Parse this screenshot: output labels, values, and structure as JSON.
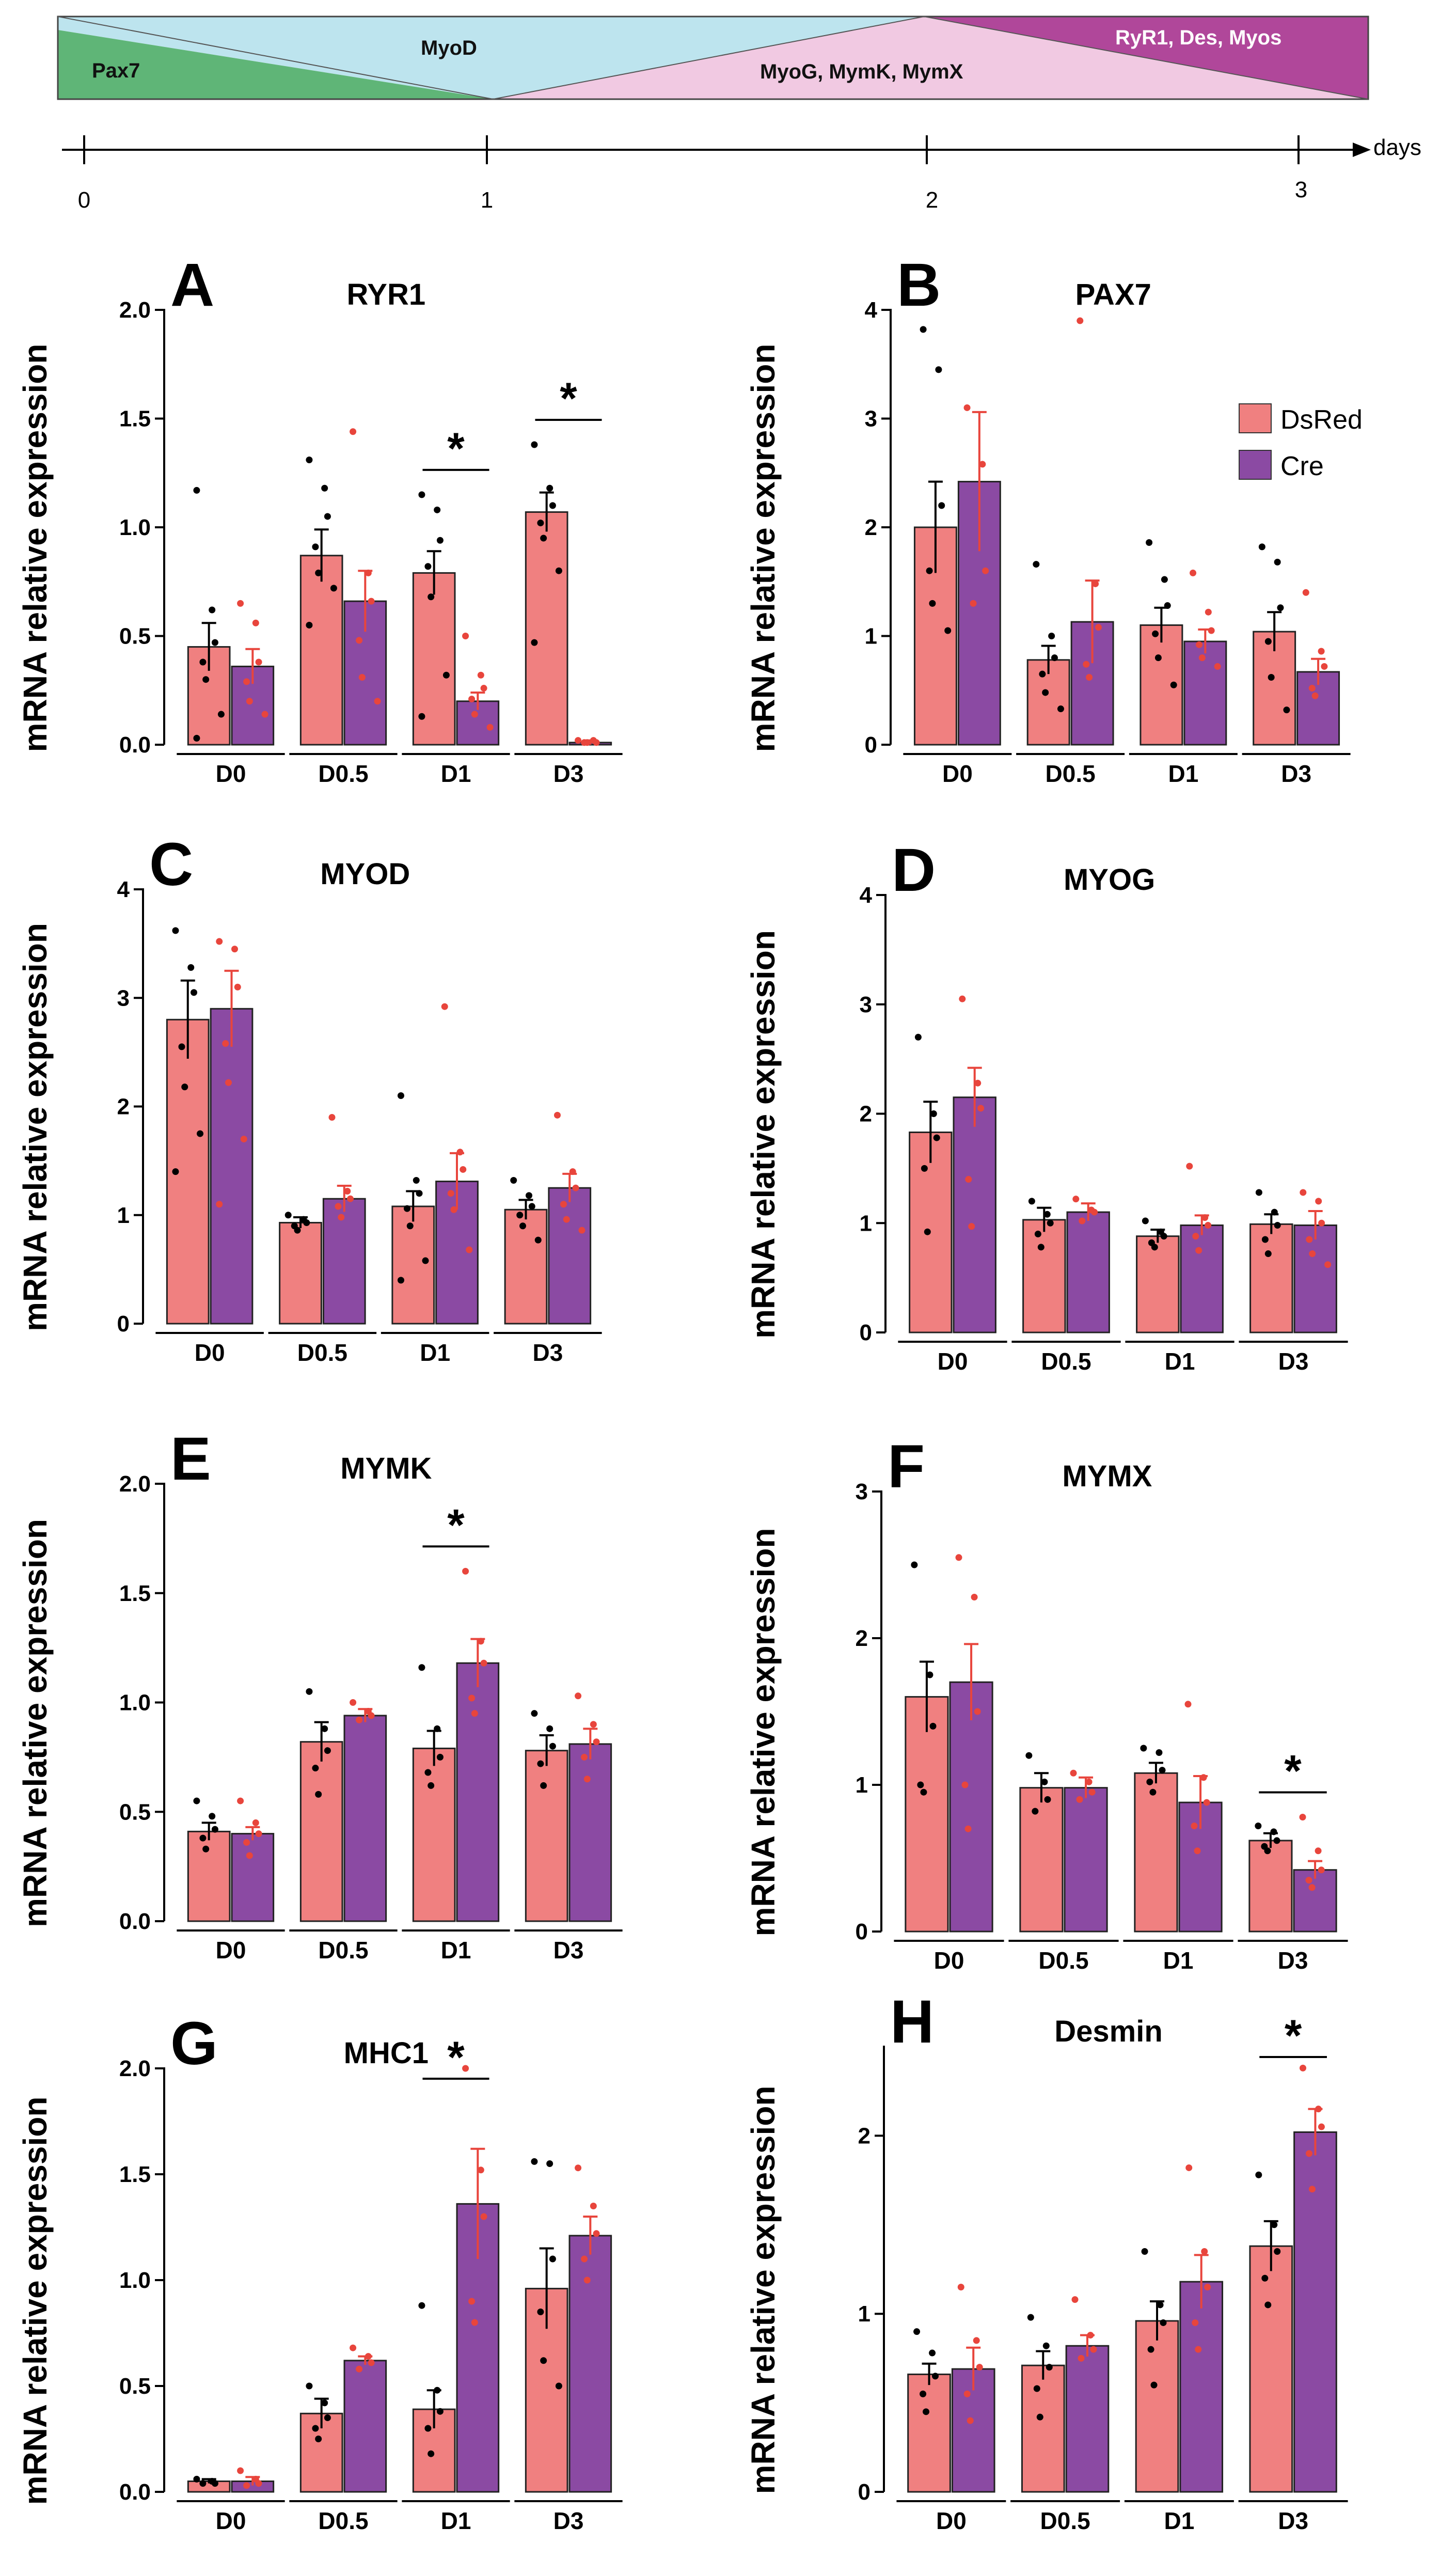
{
  "timeline": {
    "stages": [
      {
        "label": "Pax7",
        "color": "#5fb577"
      },
      {
        "label": "MyoD",
        "color": "#bde4ee"
      },
      {
        "label": "MyoG, MymK, MymX",
        "color": "#f1c9e2"
      },
      {
        "label": "RyR1, Des, Myos",
        "color": "#b0479a"
      }
    ],
    "ticks": [
      "0",
      "1",
      "2",
      "3"
    ],
    "unit": "days"
  },
  "legend": [
    {
      "label": "DsRed",
      "color": "#f08080"
    },
    {
      "label": "Cre",
      "color": "#8b4aa3"
    }
  ],
  "colors": {
    "dsred": "#f08080",
    "cre": "#8b4aa3",
    "cre_points": "#e8453c",
    "dsred_points": "#000000"
  },
  "y_axis_label": "mRNA relative expression",
  "chart_data": [
    {
      "type": "bar",
      "panel": "A",
      "title": "RYR1",
      "categories": [
        "D0",
        "D0.5",
        "D1",
        "D3"
      ],
      "ylim": [
        0,
        2.0
      ],
      "yticks": [
        "0.0",
        "0.5",
        "1.0",
        "1.5",
        "2.0"
      ],
      "ylabel": "mRNA relative expression",
      "series": [
        {
          "name": "DsRed",
          "values": [
            0.45,
            0.87,
            0.79,
            1.07
          ],
          "errors": [
            0.11,
            0.12,
            0.1,
            0.09
          ],
          "points": [
            [
              1.17,
              0.62,
              0.47,
              0.38,
              0.3,
              0.14,
              0.03
            ],
            [
              1.31,
              1.18,
              1.05,
              0.91,
              0.79,
              0.72,
              0.55
            ],
            [
              1.15,
              1.08,
              0.94,
              0.82,
              0.68,
              0.32,
              0.13
            ],
            [
              1.38,
              1.18,
              1.1,
              1.02,
              0.95,
              0.8,
              0.47
            ]
          ]
        },
        {
          "name": "Cre",
          "values": [
            0.36,
            0.66,
            0.2,
            0.01
          ],
          "errors": [
            0.08,
            0.14,
            0.04,
            0.01
          ],
          "points": [
            [
              0.65,
              0.56,
              0.38,
              0.29,
              0.2,
              0.14
            ],
            [
              1.44,
              0.79,
              0.66,
              0.48,
              0.31,
              0.2
            ],
            [
              0.5,
              0.32,
              0.26,
              0.21,
              0.14,
              0.08
            ],
            [
              0.02,
              0.02,
              0.01,
              0.01,
              0.01
            ]
          ]
        }
      ],
      "significance": [
        {
          "category": "D1",
          "label": "*"
        },
        {
          "category": "D3",
          "label": "*"
        }
      ]
    },
    {
      "type": "bar",
      "panel": "B",
      "title": "PAX7",
      "categories": [
        "D0",
        "D0.5",
        "D1",
        "D3"
      ],
      "ylim": [
        0,
        4
      ],
      "yticks": [
        "0",
        "1",
        "2",
        "3",
        "4"
      ],
      "ylabel": "mRNA relative expression",
      "series": [
        {
          "name": "DsRed",
          "values": [
            2.0,
            0.78,
            1.1,
            1.04
          ],
          "errors": [
            0.42,
            0.13,
            0.16,
            0.18
          ],
          "points": [
            [
              3.82,
              3.45,
              2.2,
              1.6,
              1.3,
              1.05
            ],
            [
              1.66,
              1.0,
              0.8,
              0.65,
              0.48,
              0.33
            ],
            [
              1.86,
              1.52,
              1.28,
              1.02,
              0.8,
              0.55
            ],
            [
              1.82,
              1.68,
              1.26,
              0.95,
              0.62,
              0.32
            ]
          ]
        },
        {
          "name": "Cre",
          "values": [
            2.42,
            1.13,
            0.95,
            0.67
          ],
          "errors": [
            0.64,
            0.38,
            0.11,
            0.12
          ],
          "points": [
            [
              3.1,
              2.58,
              1.6,
              1.3
            ],
            [
              3.9,
              1.48,
              1.08,
              0.74,
              0.62
            ],
            [
              1.58,
              1.22,
              1.05,
              0.92,
              0.8,
              0.72
            ],
            [
              1.4,
              0.86,
              0.72,
              0.52,
              0.45
            ]
          ]
        }
      ],
      "significance": []
    },
    {
      "type": "bar",
      "panel": "C",
      "title": "MYOD",
      "categories": [
        "D0",
        "D0.5",
        "D1",
        "D3"
      ],
      "ylim": [
        0,
        4
      ],
      "yticks": [
        "0",
        "1",
        "2",
        "3",
        "4"
      ],
      "ylabel": "mRNA relative expression",
      "series": [
        {
          "name": "DsRed",
          "values": [
            2.8,
            0.93,
            1.08,
            1.05
          ],
          "errors": [
            0.36,
            0.05,
            0.14,
            0.09
          ],
          "points": [
            [
              3.62,
              3.28,
              3.05,
              2.55,
              2.18,
              1.75,
              1.4
            ],
            [
              1.0,
              0.96,
              0.93,
              0.9,
              0.86
            ],
            [
              2.1,
              1.32,
              1.2,
              1.06,
              0.9,
              0.58,
              0.4
            ],
            [
              1.32,
              1.18,
              1.08,
              1.0,
              0.9,
              0.77
            ]
          ]
        },
        {
          "name": "Cre",
          "values": [
            2.9,
            1.15,
            1.31,
            1.25
          ],
          "errors": [
            0.35,
            0.12,
            0.26,
            0.13
          ],
          "points": [
            [
              3.52,
              3.45,
              3.1,
              2.58,
              2.22,
              1.7,
              1.1
            ],
            [
              1.9,
              1.22,
              1.15,
              1.08,
              0.98
            ],
            [
              2.92,
              1.58,
              1.42,
              1.2,
              1.05,
              0.68
            ],
            [
              1.92,
              1.4,
              1.25,
              1.1,
              0.96,
              0.86
            ]
          ]
        }
      ],
      "significance": []
    },
    {
      "type": "bar",
      "panel": "D",
      "title": "MYOG",
      "categories": [
        "D0",
        "D0.5",
        "D1",
        "D3"
      ],
      "ylim": [
        0,
        4
      ],
      "yticks": [
        "0",
        "1",
        "2",
        "3",
        "4"
      ],
      "ylabel": "mRNA relative expression",
      "series": [
        {
          "name": "DsRed",
          "values": [
            1.83,
            1.03,
            0.88,
            0.99
          ],
          "errors": [
            0.28,
            0.11,
            0.06,
            0.09
          ],
          "points": [
            [
              2.7,
              2.0,
              1.78,
              1.5,
              0.92
            ],
            [
              1.2,
              1.08,
              1.0,
              0.9,
              0.78
            ],
            [
              1.02,
              0.92,
              0.88,
              0.82,
              0.78
            ],
            [
              1.28,
              1.1,
              0.98,
              0.85,
              0.72
            ]
          ]
        },
        {
          "name": "Cre",
          "values": [
            2.15,
            1.1,
            0.98,
            0.98
          ],
          "errors": [
            0.27,
            0.08,
            0.09,
            0.13
          ],
          "points": [
            [
              3.05,
              2.28,
              2.05,
              1.4,
              0.97
            ],
            [
              1.22,
              1.12,
              1.1,
              1.02
            ],
            [
              1.52,
              1.05,
              0.98,
              0.88,
              0.75
            ],
            [
              1.28,
              1.2,
              1.0,
              0.85,
              0.72,
              0.62
            ]
          ]
        }
      ],
      "significance": []
    },
    {
      "type": "bar",
      "panel": "E",
      "title": "MYMK",
      "categories": [
        "D0",
        "D0.5",
        "D1",
        "D3"
      ],
      "ylim": [
        0,
        2.0
      ],
      "yticks": [
        "0.0",
        "0.5",
        "1.0",
        "1.5",
        "2.0"
      ],
      "ylabel": "mRNA relative expression",
      "series": [
        {
          "name": "DsRed",
          "values": [
            0.41,
            0.82,
            0.79,
            0.78
          ],
          "errors": [
            0.04,
            0.09,
            0.08,
            0.07
          ],
          "points": [
            [
              0.55,
              0.48,
              0.42,
              0.38,
              0.33
            ],
            [
              1.05,
              0.88,
              0.78,
              0.7,
              0.58
            ],
            [
              1.16,
              0.88,
              0.75,
              0.68,
              0.62
            ],
            [
              0.95,
              0.88,
              0.8,
              0.72,
              0.62
            ]
          ]
        },
        {
          "name": "Cre",
          "values": [
            0.4,
            0.94,
            1.18,
            0.81
          ],
          "errors": [
            0.03,
            0.03,
            0.11,
            0.07
          ],
          "points": [
            [
              0.55,
              0.45,
              0.4,
              0.36,
              0.3
            ],
            [
              1.0,
              0.96,
              0.94,
              0.92
            ],
            [
              1.6,
              1.28,
              1.18,
              1.02,
              0.95
            ],
            [
              1.03,
              0.9,
              0.82,
              0.75,
              0.65
            ]
          ]
        }
      ],
      "significance": [
        {
          "category": "D1",
          "label": "*"
        }
      ]
    },
    {
      "type": "bar",
      "panel": "F",
      "title": "MYMX",
      "categories": [
        "D0",
        "D0.5",
        "D1",
        "D3"
      ],
      "ylim": [
        0,
        3
      ],
      "yticks": [
        "0",
        "1",
        "2",
        "3"
      ],
      "ylabel": "mRNA relative expression",
      "series": [
        {
          "name": "DsRed",
          "values": [
            1.6,
            0.98,
            1.08,
            0.62
          ],
          "errors": [
            0.24,
            0.1,
            0.07,
            0.05
          ],
          "points": [
            [
              2.5,
              1.75,
              1.4,
              1.0,
              0.95
            ],
            [
              1.2,
              1.02,
              0.9,
              0.82
            ],
            [
              1.25,
              1.22,
              1.1,
              1.02,
              0.95
            ],
            [
              0.72,
              0.68,
              0.62,
              0.58,
              0.55
            ]
          ]
        },
        {
          "name": "Cre",
          "values": [
            1.7,
            0.98,
            0.88,
            0.42
          ],
          "errors": [
            0.26,
            0.07,
            0.18,
            0.06
          ],
          "points": [
            [
              2.55,
              2.28,
              1.5,
              1.0,
              0.7
            ],
            [
              1.08,
              1.02,
              0.95,
              0.9
            ],
            [
              1.55,
              1.05,
              0.88,
              0.72,
              0.55
            ],
            [
              0.78,
              0.55,
              0.42,
              0.35,
              0.3
            ]
          ]
        }
      ],
      "significance": [
        {
          "category": "D3",
          "label": "*"
        }
      ]
    },
    {
      "type": "bar",
      "panel": "G",
      "title": "MHC1",
      "categories": [
        "D0",
        "D0.5",
        "D1",
        "D3"
      ],
      "ylim": [
        0,
        2.0
      ],
      "yticks": [
        "0.0",
        "0.5",
        "1.0",
        "1.5",
        "2.0"
      ],
      "ylabel": "mRNA relative expression",
      "series": [
        {
          "name": "DsRed",
          "values": [
            0.05,
            0.37,
            0.39,
            0.96
          ],
          "errors": [
            0.01,
            0.07,
            0.09,
            0.19
          ],
          "points": [
            [
              0.06,
              0.05,
              0.04,
              0.04
            ],
            [
              0.5,
              0.42,
              0.35,
              0.3,
              0.25
            ],
            [
              0.88,
              0.48,
              0.38,
              0.3,
              0.18
            ],
            [
              1.56,
              1.55,
              1.1,
              0.85,
              0.62,
              0.5
            ]
          ]
        },
        {
          "name": "Cre",
          "values": [
            0.05,
            0.62,
            1.36,
            1.21
          ],
          "errors": [
            0.02,
            0.02,
            0.26,
            0.09
          ],
          "points": [
            [
              0.1,
              0.06,
              0.04,
              0.03
            ],
            [
              0.68,
              0.64,
              0.61,
              0.58
            ],
            [
              2.0,
              1.52,
              1.3,
              0.9,
              0.8
            ],
            [
              1.53,
              1.35,
              1.22,
              1.1,
              1.0
            ]
          ]
        }
      ],
      "significance": [
        {
          "category": "D1",
          "label": "*"
        }
      ]
    },
    {
      "type": "bar",
      "panel": "H",
      "title": "Desmin",
      "categories": [
        "D0",
        "D0.5",
        "D1",
        "D3"
      ],
      "ylim": [
        0,
        2.5
      ],
      "yticks": [
        "0",
        "1",
        "2"
      ],
      "ylabel": "mRNA relative expression",
      "series": [
        {
          "name": "DsRed",
          "values": [
            0.66,
            0.71,
            0.96,
            1.38
          ],
          "errors": [
            0.06,
            0.08,
            0.11,
            0.14
          ],
          "points": [
            [
              0.9,
              0.78,
              0.65,
              0.55,
              0.45
            ],
            [
              0.98,
              0.82,
              0.7,
              0.58,
              0.42
            ],
            [
              1.35,
              1.05,
              0.95,
              0.8,
              0.6
            ],
            [
              1.78,
              1.5,
              1.35,
              1.2,
              1.05
            ]
          ]
        },
        {
          "name": "Cre",
          "values": [
            0.69,
            0.82,
            1.18,
            2.02
          ],
          "errors": [
            0.12,
            0.06,
            0.15,
            0.13
          ],
          "points": [
            [
              1.15,
              0.85,
              0.7,
              0.55,
              0.4
            ],
            [
              1.08,
              0.88,
              0.8,
              0.75
            ],
            [
              1.82,
              1.35,
              1.15,
              0.95,
              0.8
            ],
            [
              2.38,
              2.15,
              2.05,
              1.9,
              1.7
            ]
          ]
        }
      ],
      "significance": [
        {
          "category": "D3",
          "label": "*"
        }
      ]
    }
  ]
}
